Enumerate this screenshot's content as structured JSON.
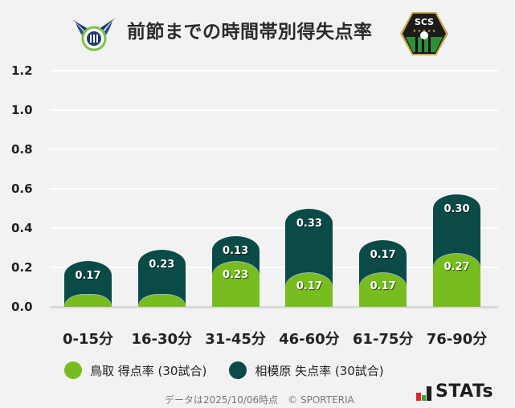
{
  "header": {
    "title": "前節までの時間帯別得失点率",
    "left_logo": "gainare-tottori-emblem",
    "right_logo": "sc-sagamihara-emblem",
    "right_logo_text": "SCS"
  },
  "chart_data": {
    "type": "bar",
    "stacked": true,
    "title": "前節までの時間帯別得失点率",
    "xlabel": "",
    "ylabel": "",
    "ylim": [
      0,
      1.2
    ],
    "yticks": [
      "0.0",
      "0.2",
      "0.4",
      "0.6",
      "0.8",
      "1.0",
      "1.2"
    ],
    "grid": true,
    "legend_position": "bottom",
    "categories": [
      "0-15分",
      "16-30分",
      "31-45分",
      "46-60分",
      "61-75分",
      "76-90分"
    ],
    "series": [
      {
        "name": "鳥取 得点率 (30試合)",
        "color": "#78bd1f",
        "values": [
          0,
          0,
          0.23,
          0.17,
          0.17,
          0.27
        ],
        "labels": [
          "",
          "",
          "0.23",
          "0.17",
          "0.17",
          "0.27"
        ]
      },
      {
        "name": "相模原 失点率 (30試合)",
        "color": "#0b4b47",
        "values": [
          0.17,
          0.23,
          0.13,
          0.33,
          0.17,
          0.3
        ],
        "labels": [
          "0.17",
          "0.23",
          "0.13",
          "0.33",
          "0.17",
          "0.30"
        ]
      }
    ]
  },
  "legend": {
    "items": [
      {
        "label": "鳥取 得点率 (30試合)",
        "color": "#78bd1f"
      },
      {
        "label": "相模原 失点率 (30試合)",
        "color": "#0b4b47"
      }
    ]
  },
  "footer": {
    "note": "データは2025/10/06時点　© SPORTERIA",
    "brand": "STATs"
  }
}
